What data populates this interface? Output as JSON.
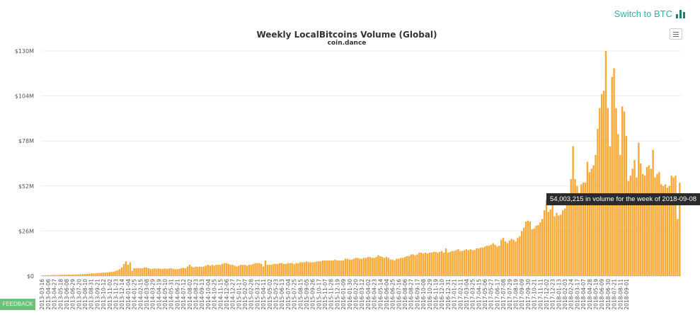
{
  "header": {
    "switch_label": "Switch to BTC",
    "switch_icon": "bar-chart-icon",
    "menu_icon": "hamburger-menu-icon"
  },
  "feedback_label": "FEEDBACK",
  "tooltip": "54,003,215 in volume for the week of 2018-09-08",
  "colors": {
    "bar": "#f7a935",
    "grid": "#ececec",
    "accent": "#2bb5a0",
    "feedback": "#6cc07a"
  },
  "chart_data": {
    "type": "bar",
    "title": "Weekly LocalBitcoins Volume (Global)",
    "subtitle": "coin.dance",
    "xlabel": "",
    "ylabel": "",
    "ylim": [
      0,
      130000000
    ],
    "y_ticks": [
      "$0",
      "$26M",
      "$52M",
      "$78M",
      "$104M",
      "$130M"
    ],
    "y_tick_values": [
      0,
      26000000,
      52000000,
      78000000,
      104000000,
      130000000
    ],
    "grid": true,
    "legend": "none",
    "x_tick_labels": [
      "2013-03-16",
      "2013-04-06",
      "2013-04-27",
      "2013-05-18",
      "2013-06-08",
      "2013-06-29",
      "2013-07-20",
      "2013-08-10",
      "2013-08-31",
      "2013-09-21",
      "2013-10-12",
      "2013-11-02",
      "2013-11-23",
      "2013-12-14",
      "2014-01-04",
      "2014-01-25",
      "2014-02-15",
      "2014-03-08",
      "2014-03-29",
      "2014-04-19",
      "2014-05-10",
      "2014-05-31",
      "2014-06-21",
      "2014-07-12",
      "2014-08-02",
      "2014-08-23",
      "2014-09-13",
      "2014-10-04",
      "2014-10-25",
      "2014-11-15",
      "2014-12-06",
      "2014-12-27",
      "2015-01-17",
      "2015-02-07",
      "2015-02-28",
      "2015-03-21",
      "2015-04-11",
      "2015-05-02",
      "2015-05-23",
      "2015-06-13",
      "2015-07-04",
      "2015-07-25",
      "2015-08-15",
      "2015-09-05",
      "2015-09-26",
      "2015-10-17",
      "2015-11-07",
      "2015-11-28",
      "2015-12-19",
      "2016-01-09",
      "2016-01-30",
      "2016-02-20",
      "2016-03-12",
      "2016-04-02",
      "2016-04-23",
      "2016-05-14",
      "2016-06-04",
      "2016-06-25",
      "2016-07-16",
      "2016-08-06",
      "2016-08-27",
      "2016-09-17",
      "2016-10-08",
      "2016-10-29",
      "2016-11-19",
      "2016-12-10",
      "2016-12-31",
      "2017-01-21",
      "2017-02-11",
      "2017-03-04",
      "2017-03-25",
      "2017-04-15",
      "2017-05-06",
      "2017-05-27",
      "2017-06-17",
      "2017-07-08",
      "2017-07-29",
      "2017-08-19",
      "2017-09-09",
      "2017-09-30",
      "2017-10-21",
      "2017-11-11",
      "2017-12-02",
      "2017-12-23",
      "2018-01-13",
      "2018-02-03",
      "2018-02-24",
      "2018-03-17",
      "2018-04-07",
      "2018-04-28",
      "2018-05-19",
      "2018-06-09",
      "2018-06-30",
      "2018-07-21",
      "2018-08-11",
      "2018-09-01"
    ],
    "weeks_per_tick": 3,
    "values_millions": [
      0.3,
      0.4,
      0.5,
      0.5,
      0.5,
      0.6,
      0.7,
      0.6,
      0.6,
      0.7,
      0.7,
      0.8,
      0.8,
      0.9,
      0.8,
      0.9,
      0.9,
      1.0,
      1.0,
      1.0,
      1.1,
      1.2,
      1.3,
      1.4,
      1.5,
      1.6,
      1.6,
      1.7,
      1.8,
      1.9,
      2.0,
      2.0,
      2.1,
      2.3,
      2.5,
      2.6,
      3.0,
      3.5,
      4.0,
      5.0,
      7.0,
      8.5,
      6.5,
      8.0,
      3.0,
      4.5,
      4.5,
      4.7,
      4.5,
      4.5,
      5.0,
      5.0,
      4.5,
      4.2,
      4.2,
      4.5,
      4.2,
      4.4,
      4.2,
      4.2,
      4.4,
      4.2,
      4.4,
      4.5,
      4.2,
      4.0,
      4.0,
      4.2,
      4.5,
      4.8,
      4.5,
      5.5,
      6.5,
      5.5,
      5.0,
      5.5,
      5.3,
      5.5,
      5.3,
      5.5,
      6.0,
      6.5,
      6.0,
      6.5,
      6.0,
      6.5,
      6.5,
      6.5,
      7.0,
      7.5,
      7.5,
      7.0,
      6.5,
      6.5,
      6.0,
      5.5,
      6.0,
      6.5,
      6.5,
      6.5,
      6.0,
      6.5,
      6.5,
      7.0,
      7.5,
      7.5,
      7.5,
      7.0,
      5.5,
      9.0,
      6.5,
      6.5,
      6.5,
      7.0,
      7.0,
      7.0,
      7.5,
      7.5,
      7.0,
      7.0,
      7.5,
      7.5,
      7.5,
      7.0,
      7.5,
      7.5,
      8.0,
      8.0,
      8.0,
      8.5,
      8.0,
      8.0,
      8.0,
      8.0,
      8.5,
      8.5,
      8.5,
      9.0,
      9.0,
      9.0,
      9.0,
      9.0,
      9.0,
      9.5,
      9.0,
      9.0,
      9.0,
      9.0,
      10.0,
      10.0,
      9.5,
      9.5,
      10.0,
      10.5,
      10.5,
      10.0,
      10.0,
      10.5,
      10.5,
      11.0,
      11.0,
      10.5,
      10.5,
      11.0,
      12.0,
      11.5,
      11.0,
      10.5,
      11.0,
      10.5,
      9.5,
      9.5,
      9.0,
      10.0,
      10.0,
      10.5,
      10.5,
      11.0,
      11.5,
      11.5,
      12.5,
      12.5,
      12.0,
      12.5,
      13.5,
      13.5,
      13.0,
      13.5,
      13.0,
      13.5,
      13.5,
      14.0,
      14.0,
      13.5,
      14.0,
      14.5,
      13.5,
      16.0,
      13.5,
      14.0,
      14.5,
      14.5,
      15.0,
      15.5,
      14.5,
      14.5,
      15.0,
      15.5,
      15.0,
      15.5,
      15.0,
      15.0,
      16.0,
      16.0,
      16.5,
      16.5,
      17.0,
      17.5,
      17.5,
      18.0,
      19.0,
      18.0,
      17.0,
      17.5,
      21.0,
      22.0,
      20.0,
      19.0,
      20.5,
      21.5,
      21.0,
      20.0,
      22.0,
      23.0,
      26.0,
      28.0,
      31.5,
      32.0,
      31.5,
      27.0,
      27.5,
      29.0,
      29.5,
      31.0,
      33.0,
      38.0,
      44.0,
      37.0,
      38.5,
      41.0,
      34.5,
      36.5,
      35.0,
      35.5,
      38.0,
      39.0,
      42.0,
      46.0,
      56.0,
      75.0,
      56.0,
      52.0,
      48.0,
      53.0,
      54.0,
      54.0,
      66.0,
      60.0,
      62.0,
      64.0,
      70.0,
      85.0,
      97.0,
      105.0,
      107.0,
      130.0,
      97.0,
      75.0,
      115.0,
      120.0,
      97.0,
      82.0,
      70.0,
      98.0,
      95.0,
      81.0,
      55.0,
      58.0,
      62.0,
      67.0,
      57.0,
      77.0,
      65.0,
      59.0,
      58.0,
      63.0,
      64.0,
      62.0,
      73.0,
      57.0,
      59.0,
      60.0,
      53.0,
      52.0,
      53.0,
      51.0,
      52.0,
      58.0,
      57.0,
      58.0,
      33.0,
      54.0
    ]
  }
}
